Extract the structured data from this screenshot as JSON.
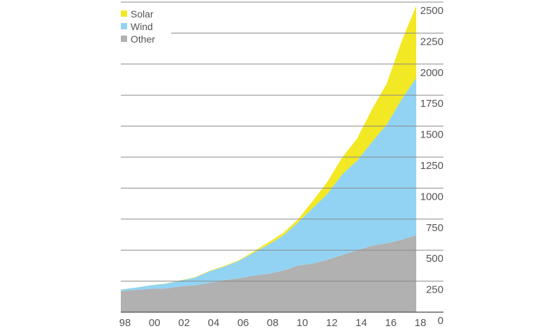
{
  "chart_data": {
    "type": "area",
    "stacked": true,
    "title": "",
    "xlabel": "",
    "ylabel": "",
    "x": [
      "98",
      "99",
      "00",
      "01",
      "02",
      "03",
      "04",
      "05",
      "06",
      "07",
      "08",
      "09",
      "10",
      "11",
      "12",
      "13",
      "14",
      "15",
      "16",
      "17",
      "18"
    ],
    "x_tick_labels": [
      "98",
      "00",
      "02",
      "04",
      "06",
      "08",
      "10",
      "12",
      "14",
      "16",
      "18"
    ],
    "y_tick_labels": [
      "0",
      "250",
      "500",
      "750",
      "1000",
      "1250",
      "1500",
      "1750",
      "2000",
      "2250",
      "2500"
    ],
    "ylim": [
      0,
      2500
    ],
    "y_axis_side": "right",
    "grid": true,
    "legend_position": "top-left",
    "series": [
      {
        "name": "Other",
        "color": "#b1b1b1",
        "values": [
          169,
          179,
          188,
          190,
          207,
          216,
          235,
          258,
          273,
          295,
          310,
          335,
          376,
          391,
          423,
          461,
          498,
          536,
          555,
          583,
          620
        ]
      },
      {
        "name": "Wind",
        "color": "#92d3f3",
        "values": [
          13,
          18,
          28,
          39,
          47,
          62,
          94,
          109,
          141,
          184,
          235,
          282,
          348,
          449,
          532,
          652,
          724,
          836,
          958,
          1131,
          1269
        ]
      },
      {
        "name": "Solar",
        "color": "#f2e824",
        "values": [
          0,
          0,
          1,
          1,
          2,
          3,
          4,
          5,
          5,
          10,
          19,
          22,
          24,
          58,
          98,
          137,
          178,
          263,
          329,
          466,
          583
        ]
      }
    ],
    "legend": [
      "Solar",
      "Wind",
      "Other"
    ]
  }
}
